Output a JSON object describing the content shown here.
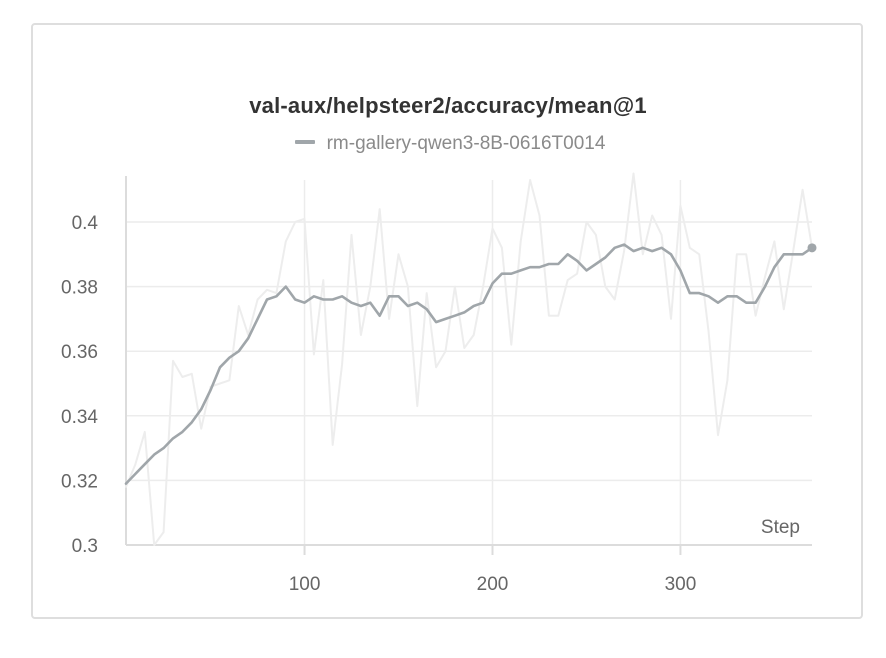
{
  "chart_data": {
    "type": "line",
    "title": "val-aux/helpsteer2/accuracy/mean@1",
    "xlabel": "Step",
    "ylabel": "",
    "xlim": [
      5,
      370
    ],
    "ylim": [
      0.3,
      0.413
    ],
    "x_ticks": [
      100,
      200,
      300
    ],
    "y_ticks": [
      0.3,
      0.32,
      0.34,
      0.36,
      0.38,
      0.4
    ],
    "y_tick_labels": [
      "0.3",
      "0.32",
      "0.34",
      "0.36",
      "0.38",
      "0.4"
    ],
    "x_tick_labels": [
      "100",
      "200",
      "300"
    ],
    "grid": true,
    "legend_position": "top",
    "series": [
      {
        "name": "rm-gallery-qwen3-8B-0616T0014",
        "color": "#a0a6aa",
        "role": "smoothed",
        "x": [
          5,
          10,
          15,
          20,
          25,
          30,
          35,
          40,
          45,
          50,
          55,
          60,
          65,
          70,
          75,
          80,
          85,
          90,
          95,
          100,
          105,
          110,
          115,
          120,
          125,
          130,
          135,
          140,
          145,
          150,
          155,
          160,
          165,
          170,
          175,
          180,
          185,
          190,
          195,
          200,
          205,
          210,
          215,
          220,
          225,
          230,
          235,
          240,
          245,
          250,
          255,
          260,
          265,
          270,
          275,
          280,
          285,
          290,
          295,
          300,
          305,
          310,
          315,
          320,
          325,
          330,
          335,
          340,
          345,
          350,
          355,
          360,
          365,
          370
        ],
        "y": [
          0.319,
          0.322,
          0.325,
          0.328,
          0.33,
          0.333,
          0.335,
          0.338,
          0.342,
          0.348,
          0.355,
          0.358,
          0.36,
          0.364,
          0.37,
          0.376,
          0.377,
          0.38,
          0.376,
          0.375,
          0.377,
          0.376,
          0.376,
          0.377,
          0.375,
          0.374,
          0.375,
          0.371,
          0.377,
          0.377,
          0.374,
          0.375,
          0.373,
          0.369,
          0.37,
          0.371,
          0.372,
          0.374,
          0.375,
          0.381,
          0.384,
          0.384,
          0.385,
          0.386,
          0.386,
          0.387,
          0.387,
          0.39,
          0.388,
          0.385,
          0.387,
          0.389,
          0.392,
          0.393,
          0.391,
          0.392,
          0.391,
          0.392,
          0.39,
          0.385,
          0.378,
          0.378,
          0.377,
          0.375,
          0.377,
          0.377,
          0.375,
          0.375,
          0.38,
          0.386,
          0.39,
          0.39,
          0.39,
          0.392
        ]
      },
      {
        "name": "rm-gallery-qwen3-8B-0616T0014 (raw)",
        "color": "#ededed",
        "role": "raw",
        "x": [
          5,
          10,
          15,
          20,
          25,
          30,
          35,
          40,
          45,
          50,
          55,
          60,
          65,
          70,
          75,
          80,
          85,
          90,
          95,
          100,
          105,
          110,
          115,
          120,
          125,
          130,
          135,
          140,
          145,
          150,
          155,
          160,
          165,
          170,
          175,
          180,
          185,
          190,
          195,
          200,
          205,
          210,
          215,
          220,
          225,
          230,
          235,
          240,
          245,
          250,
          255,
          260,
          265,
          270,
          275,
          280,
          285,
          290,
          295,
          300,
          305,
          310,
          315,
          320,
          325,
          330,
          335,
          340,
          345,
          350,
          355,
          360,
          365,
          370
        ],
        "y": [
          0.318,
          0.325,
          0.335,
          0.3,
          0.304,
          0.357,
          0.352,
          0.353,
          0.336,
          0.349,
          0.35,
          0.351,
          0.374,
          0.365,
          0.376,
          0.379,
          0.378,
          0.394,
          0.4,
          0.401,
          0.359,
          0.382,
          0.331,
          0.356,
          0.396,
          0.365,
          0.38,
          0.404,
          0.37,
          0.39,
          0.38,
          0.343,
          0.378,
          0.355,
          0.36,
          0.38,
          0.361,
          0.365,
          0.38,
          0.398,
          0.392,
          0.362,
          0.394,
          0.413,
          0.402,
          0.371,
          0.371,
          0.382,
          0.384,
          0.4,
          0.396,
          0.38,
          0.376,
          0.391,
          0.415,
          0.39,
          0.402,
          0.396,
          0.37,
          0.405,
          0.392,
          0.39,
          0.366,
          0.334,
          0.351,
          0.39,
          0.39,
          0.371,
          0.383,
          0.394,
          0.373,
          0.391,
          0.41,
          0.392
        ]
      }
    ]
  }
}
